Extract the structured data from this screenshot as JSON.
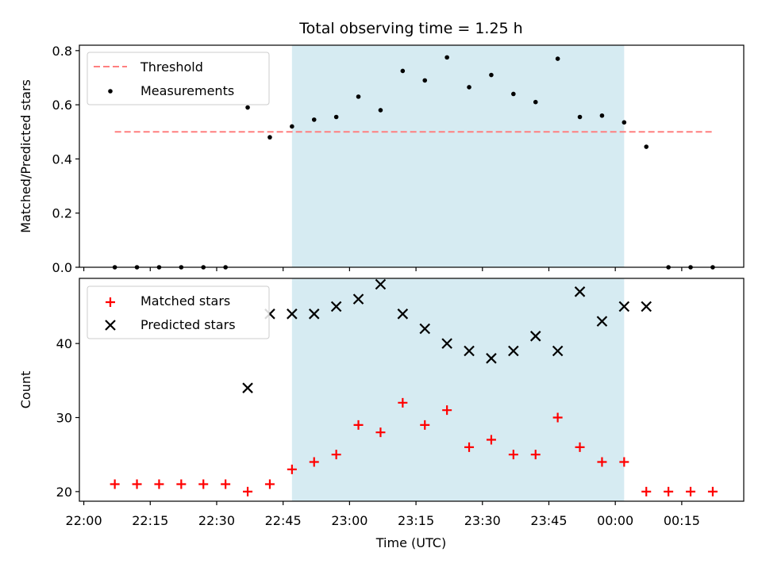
{
  "chart_data": {
    "title": "Total observing time = 1.25 h",
    "xlabel": "Time (UTC)",
    "x_ticks": [
      "22:00",
      "22:15",
      "22:30",
      "22:45",
      "23:00",
      "23:15",
      "23:30",
      "23:45",
      "00:00",
      "00:15"
    ],
    "x_range": [
      "21:59",
      "00:29"
    ],
    "shaded_span": {
      "start": "22:47",
      "end": "00:02",
      "color": "#add8e6"
    },
    "times": [
      "22:07",
      "22:12",
      "22:17",
      "22:22",
      "22:27",
      "22:32",
      "22:37",
      "22:42",
      "22:47",
      "22:52",
      "22:57",
      "23:02",
      "23:07",
      "23:12",
      "23:17",
      "23:22",
      "23:27",
      "23:32",
      "23:37",
      "23:42",
      "23:47",
      "23:52",
      "23:57",
      "00:02",
      "00:07",
      "00:12",
      "00:17",
      "00:22"
    ],
    "panels": [
      {
        "type": "scatter",
        "ylabel": "Matched/Predicted stars",
        "ylim": [
          0.0,
          0.82
        ],
        "y_ticks": [
          "0.0",
          "0.2",
          "0.4",
          "0.6",
          "0.8"
        ],
        "legend_position": "upper-left",
        "series": [
          {
            "name": "Threshold",
            "kind": "dashed-line",
            "color": "#ff7f7f",
            "x_range": [
              "22:07",
              "00:22"
            ],
            "value": 0.5
          },
          {
            "name": "Measurements",
            "kind": "dot",
            "color": "#000000",
            "values": [
              0,
              0,
              0,
              0,
              0,
              0,
              0.59,
              0.48,
              0.52,
              0.545,
              0.555,
              0.63,
              0.58,
              0.725,
              0.69,
              0.775,
              0.665,
              0.71,
              0.64,
              0.61,
              0.77,
              0.555,
              0.56,
              0.535,
              0.445,
              0,
              0,
              0
            ]
          }
        ]
      },
      {
        "type": "scatter",
        "ylabel": "Count",
        "ylim": [
          18.7,
          48.8
        ],
        "y_ticks": [
          "20",
          "30",
          "40"
        ],
        "legend_position": "upper-left",
        "series": [
          {
            "name": "Matched stars",
            "kind": "plus",
            "color": "#ff0000",
            "values": [
              21,
              21,
              21,
              21,
              21,
              21,
              20,
              21,
              23,
              24,
              25,
              29,
              28,
              32,
              29,
              31,
              26,
              27,
              25,
              25,
              30,
              26,
              24,
              24,
              20,
              20,
              20,
              20
            ]
          },
          {
            "name": "Predicted stars",
            "kind": "x",
            "color": "#000000",
            "values": [
              null,
              null,
              null,
              null,
              null,
              null,
              34,
              44,
              44,
              44,
              45,
              46,
              48,
              44,
              42,
              40,
              39,
              38,
              39,
              41,
              39,
              47,
              43,
              45,
              45,
              null,
              null,
              null
            ]
          }
        ]
      }
    ]
  }
}
